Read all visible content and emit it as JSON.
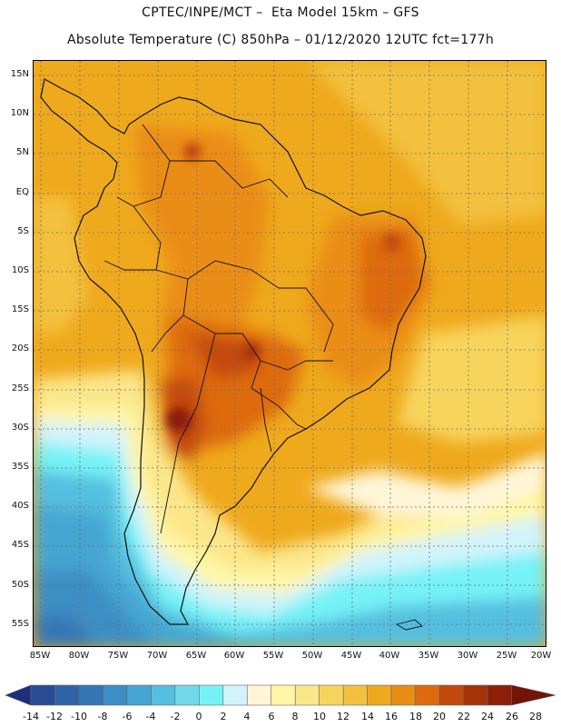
{
  "header": {
    "line1": "CPTEC/INPE/MCT –  Eta Model 15km – GFS",
    "line2": "Absolute Temperature (C) 850hPa – 01/12/2020 12UTC fct=177h"
  },
  "map": {
    "lat_labels": [
      "15N",
      "10N",
      "5N",
      "EQ",
      "5S",
      "10S",
      "15S",
      "20S",
      "25S",
      "30S",
      "35S",
      "40S",
      "45S",
      "50S",
      "55S"
    ],
    "lon_labels": [
      "85W",
      "80W",
      "75W",
      "70W",
      "65W",
      "60W",
      "55W",
      "50W",
      "45W",
      "40W",
      "35W",
      "30W",
      "25W",
      "20W"
    ]
  },
  "legend": {
    "ticks": [
      "-14",
      "-12",
      "-10",
      "-8",
      "-6",
      "-4",
      "-2",
      "0",
      "2",
      "4",
      "6",
      "8",
      "10",
      "12",
      "14",
      "16",
      "18",
      "20",
      "22",
      "24",
      "26",
      "28"
    ],
    "colors": [
      "#1c2f7a",
      "#2a4b96",
      "#2f63a8",
      "#3577b6",
      "#3c8ec4",
      "#45a6d2",
      "#55bfdf",
      "#6fd8ea",
      "#76f2f6",
      "#d2f3fb",
      "#fff6d8",
      "#fff6a6",
      "#fbe68a",
      "#f8d45c",
      "#f3c13d",
      "#efa91c",
      "#ea8d12",
      "#dd6b0d",
      "#c4480b",
      "#a83208",
      "#8c1f07",
      "#741406"
    ]
  }
}
